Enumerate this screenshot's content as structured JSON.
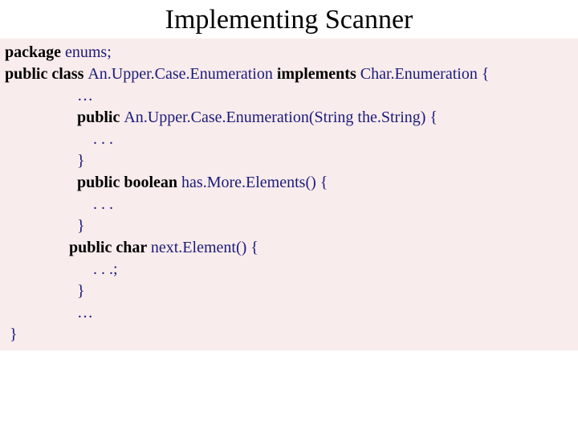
{
  "title": "Implementing Scanner",
  "colors": {
    "code_text": "#1a1a7a",
    "keyword": "#000000",
    "code_background": "#f9ecec",
    "page_background": "#ffffff",
    "title_color": "#000000"
  },
  "typography": {
    "title_fontsize": 34,
    "code_fontsize": 20,
    "font_family": "Times New Roman"
  },
  "code": {
    "l1_kw1": "package ",
    "l1_t1": "enums;",
    "l2_kw1": "public class ",
    "l2_t1": "An.Upper.Case.Enumeration ",
    "l2_kw2": "implements ",
    "l2_t2": "Char.Enumeration {",
    "blank": " ",
    "l4_t1": "…",
    "l5_kw1": "public ",
    "l5_t1": "An.Upper.Case.Enumeration(String the.String) {",
    "l7_t1": ". . .",
    "l8_t1": "}",
    "l9_kw1": "public boolean ",
    "l9_t1": "has.More.Elements() {",
    "l10_t1": ". . .",
    "l11_t1": "}",
    "l12_kw1": "public char ",
    "l12_t1": "next.Element() {",
    "l13_t1": ". . .;",
    "l14_t1": "}",
    "l15_t1": "…",
    "l16_t1": "}"
  }
}
